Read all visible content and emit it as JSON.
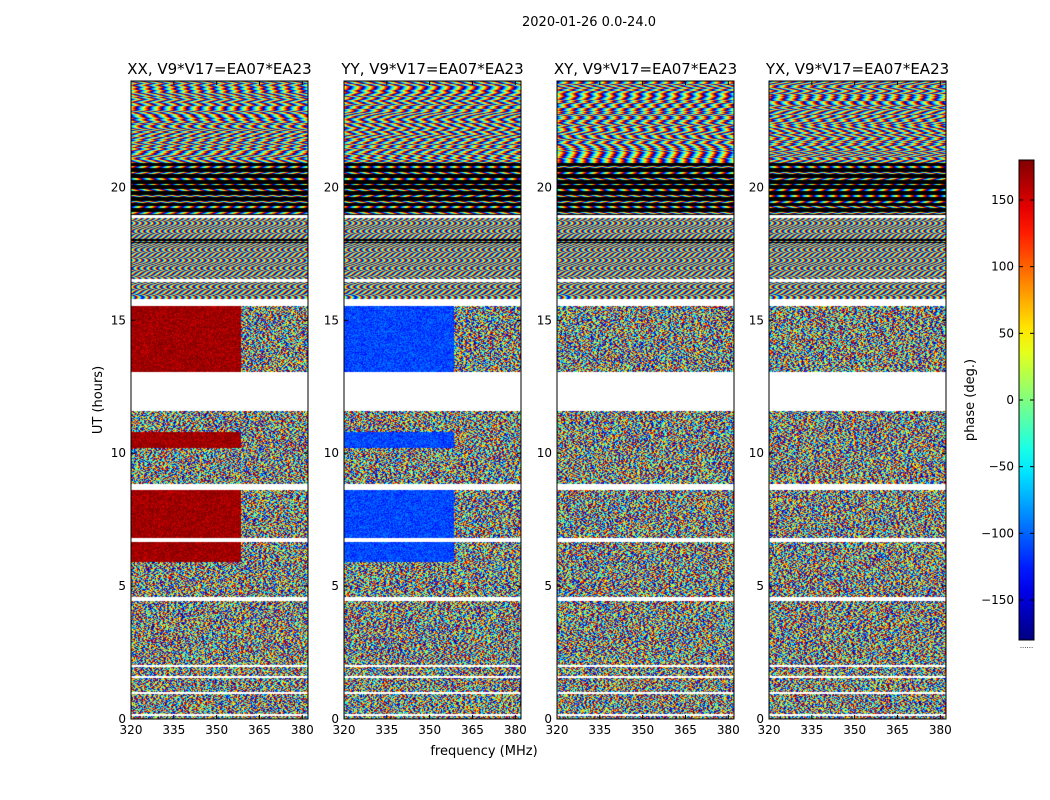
{
  "chart_data": {
    "type": "heatmap",
    "suptitle": "2020-01-26 0.0-24.0",
    "xlabel": "frequency (MHz)",
    "ylabel": "UT (hours)",
    "xlim": [
      320,
      382
    ],
    "ylim": [
      0,
      24
    ],
    "x_ticks": [
      320,
      335,
      350,
      365,
      380
    ],
    "y_ticks": [
      0,
      5,
      10,
      15,
      20
    ],
    "colorbar": {
      "label": "phase (deg.)",
      "range": [
        -180,
        180
      ],
      "ticks": [
        150,
        100,
        50,
        0,
        -50,
        -100,
        -150
      ],
      "colormap": "jet"
    },
    "panels": [
      {
        "title": "XX, V9*V17=EA07*EA23",
        "seed": 11,
        "low_freq_phase": 170
      },
      {
        "title": "YY, V9*V17=EA07*EA23",
        "seed": 23,
        "low_freq_phase": -110
      },
      {
        "title": "XY, V9*V17=EA07*EA23",
        "seed": 37,
        "low_freq_phase": null
      },
      {
        "title": "YX, V9*V17=EA07*EA23",
        "seed": 51,
        "low_freq_phase": null
      }
    ],
    "blank_ut_ranges": [
      [
        0.12,
        0.18
      ],
      [
        0.95,
        1.0
      ],
      [
        1.55,
        1.62
      ],
      [
        1.95,
        2.05
      ],
      [
        4.45,
        4.6
      ],
      [
        6.65,
        6.8
      ],
      [
        8.6,
        8.85
      ],
      [
        11.6,
        13.05
      ],
      [
        15.55,
        15.8
      ],
      [
        16.45,
        16.55
      ],
      [
        18.85,
        18.95
      ]
    ],
    "flagged_black_ut_ranges": [
      [
        17.9,
        18.05
      ],
      [
        18.95,
        21.0
      ]
    ],
    "colorbar_bottom_mark": "......"
  }
}
